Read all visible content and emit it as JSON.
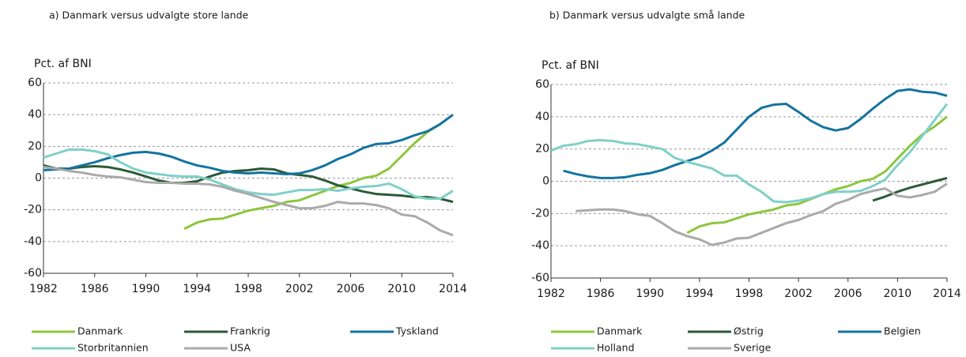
{
  "chart_data": [
    {
      "type": "line",
      "title": "a) Danmark versus udvalgte store lande",
      "y_label": "Pct. af BNI",
      "x": [
        1982,
        1983,
        1984,
        1985,
        1986,
        1987,
        1988,
        1989,
        1990,
        1991,
        1992,
        1993,
        1994,
        1995,
        1996,
        1997,
        1998,
        1999,
        2000,
        2001,
        2002,
        2003,
        2004,
        2005,
        2006,
        2007,
        2008,
        2009,
        2010,
        2011,
        2012,
        2013,
        2014
      ],
      "xlim": [
        1982,
        2014
      ],
      "xticks": [
        1982,
        1986,
        1990,
        1994,
        1998,
        2002,
        2006,
        2010,
        2014
      ],
      "ylim": [
        -60,
        60
      ],
      "yticks": [
        -60,
        -40,
        -20,
        0,
        20,
        40,
        60
      ],
      "grid": true,
      "series": [
        {
          "name": "Danmark",
          "color": "#8dc63f",
          "values": [
            null,
            null,
            null,
            null,
            null,
            null,
            null,
            null,
            null,
            null,
            null,
            -32,
            -28,
            -26,
            -25.5,
            -23,
            -20.5,
            -19,
            -17.5,
            -15,
            -14,
            -11,
            -8,
            -5,
            -3,
            0,
            1.5,
            6,
            14,
            22,
            29,
            34,
            40
          ]
        },
        {
          "name": "Frankrig",
          "color": "#2b5a36",
          "values": [
            8,
            6,
            6,
            7,
            7.5,
            7,
            5.5,
            3.5,
            1,
            -1.5,
            -3,
            -3,
            -2,
            1,
            3.5,
            4.5,
            5,
            6,
            5.5,
            3,
            2,
            1,
            -1.5,
            -4.5,
            -6.5,
            -8.5,
            -10,
            -10.5,
            -11,
            -12,
            -12,
            -13,
            -15
          ]
        },
        {
          "name": "Tyskland",
          "color": "#1473a0",
          "values": [
            5,
            5.5,
            6,
            8,
            10,
            12.5,
            14.5,
            16,
            16.5,
            15.5,
            13.5,
            10.5,
            8,
            6.5,
            4.5,
            3.5,
            3,
            3.5,
            3,
            2.5,
            3,
            5,
            8,
            12,
            15,
            19,
            21.5,
            22,
            24,
            27,
            29.5,
            34,
            40
          ]
        },
        {
          "name": "Storbritannien",
          "color": "#7fd0c8",
          "values": [
            13,
            15.5,
            18,
            18,
            17,
            15,
            10,
            6,
            3.5,
            2.5,
            1.5,
            1,
            1,
            -1,
            -4,
            -7,
            -9,
            -10,
            -10.5,
            -9,
            -7.5,
            -7.5,
            -7,
            -8,
            -6.5,
            -5.5,
            -5,
            -3.5,
            -7,
            -11.5,
            -13,
            -13,
            -8
          ]
        },
        {
          "name": "USA",
          "color": "#aaaaaa",
          "values": [
            7,
            6,
            4.5,
            3.5,
            2,
            1,
            0.5,
            -1,
            -2.5,
            -3,
            -3,
            -3.5,
            -3.5,
            -4,
            -5.5,
            -8,
            -10,
            -12.5,
            -15,
            -17,
            -19,
            -19,
            -17.5,
            -15,
            -16,
            -16,
            -17,
            -19,
            -23,
            -24,
            -28,
            -33,
            -36
          ]
        }
      ]
    },
    {
      "type": "line",
      "title": "b) Danmark versus udvalgte små lande",
      "y_label": "Pct. af BNI",
      "x": [
        1982,
        1983,
        1984,
        1985,
        1986,
        1987,
        1988,
        1989,
        1990,
        1991,
        1992,
        1993,
        1994,
        1995,
        1996,
        1997,
        1998,
        1999,
        2000,
        2001,
        2002,
        2003,
        2004,
        2005,
        2006,
        2007,
        2008,
        2009,
        2010,
        2011,
        2012,
        2013,
        2014
      ],
      "xlim": [
        1982,
        2014
      ],
      "xticks": [
        1982,
        1986,
        1990,
        1994,
        1998,
        2002,
        2006,
        2010,
        2014
      ],
      "ylim": [
        -60,
        60
      ],
      "yticks": [
        -60,
        -40,
        -20,
        0,
        20,
        40,
        60
      ],
      "grid": true,
      "series": [
        {
          "name": "Danmark",
          "color": "#8dc63f",
          "values": [
            null,
            null,
            null,
            null,
            null,
            null,
            null,
            null,
            null,
            null,
            null,
            -32,
            -28,
            -26,
            -25.5,
            -23,
            -20.5,
            -19,
            -17.5,
            -15,
            -14,
            -11,
            -8,
            -5,
            -3,
            0,
            1.5,
            6,
            14,
            22,
            29,
            34,
            40
          ]
        },
        {
          "name": "Østrig",
          "color": "#2b5a36",
          "values": [
            null,
            null,
            null,
            null,
            null,
            null,
            null,
            null,
            null,
            null,
            null,
            null,
            null,
            null,
            null,
            null,
            null,
            null,
            null,
            null,
            null,
            null,
            null,
            null,
            null,
            null,
            -12,
            -9.5,
            -6.5,
            -4,
            -2,
            0,
            2
          ]
        },
        {
          "name": "Belgien",
          "color": "#1473a0",
          "values": [
            null,
            6.5,
            4.5,
            3,
            2,
            2,
            2.5,
            4,
            5,
            7,
            10,
            12.5,
            15,
            19,
            24,
            32,
            40,
            45.5,
            47.5,
            48,
            43,
            37.5,
            33.5,
            31.5,
            33,
            38.5,
            45,
            51,
            56,
            57,
            55.5,
            55,
            53
          ]
        },
        {
          "name": "Holland",
          "color": "#7fd0c8",
          "values": [
            19,
            22,
            23,
            25,
            25.5,
            25,
            23.5,
            23,
            21.5,
            20,
            14.5,
            12,
            10,
            8,
            3.5,
            3.5,
            -2,
            -6.5,
            -12.5,
            -13,
            -12,
            -10.5,
            -8,
            -6.5,
            -6.5,
            -6,
            -3,
            1,
            10,
            18,
            28,
            38,
            48
          ]
        },
        {
          "name": "Sverige",
          "color": "#aaaaaa",
          "values": [
            null,
            null,
            -18.5,
            -18,
            -17.5,
            -17.5,
            -18.5,
            -20.5,
            -21.5,
            -26,
            -31,
            -34,
            -36,
            -39.5,
            -38,
            -35.5,
            -35,
            -32,
            -29,
            -26,
            -24,
            -21,
            -18.5,
            -14,
            -11.5,
            -8,
            -6,
            -4.5,
            -9,
            -10,
            -8.5,
            -6.5,
            -1.5
          ]
        }
      ]
    }
  ]
}
